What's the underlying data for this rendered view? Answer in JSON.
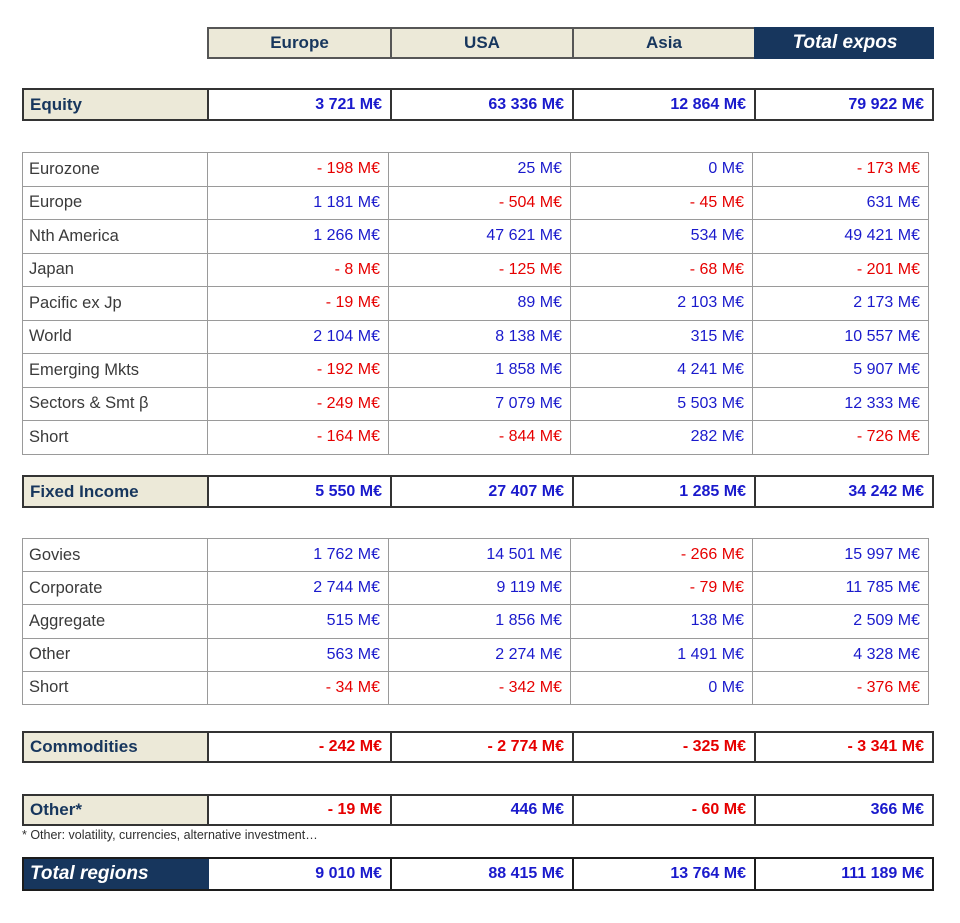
{
  "colors": {
    "positive_blue": "#1A1ACC",
    "negative_red": "#E60000",
    "navy": "#17365D",
    "beige": "#ECE9D8"
  },
  "columns": [
    "Europe",
    "USA",
    "Asia",
    "Total expos"
  ],
  "sections": {
    "equity": {
      "label": "Equity",
      "values": [
        "3 721 M€",
        "63 336 M€",
        "12 864 M€",
        "79 922 M€"
      ]
    },
    "fixed_income": {
      "label": "Fixed Income",
      "values": [
        "5 550 M€",
        "27 407 M€",
        "1 285 M€",
        "34 242 M€"
      ]
    },
    "commodities": {
      "label": "Commodities",
      "values": [
        "- 242 M€",
        "- 2 774 M€",
        "- 325 M€",
        "- 3 341 M€"
      ]
    },
    "other": {
      "label": "Other*",
      "values": [
        "- 19 M€",
        "446 M€",
        "- 60 M€",
        "366 M€"
      ]
    },
    "total": {
      "label": "Total regions",
      "values": [
        "9 010 M€",
        "88 415 M€",
        "13 764 M€",
        "111 189 M€"
      ]
    }
  },
  "equity_rows": [
    {
      "label": "Eurozone",
      "values": [
        "- 198 M€",
        "25 M€",
        "0 M€",
        "- 173 M€"
      ]
    },
    {
      "label": "Europe",
      "values": [
        "1 181 M€",
        "- 504 M€",
        "- 45 M€",
        "631 M€"
      ]
    },
    {
      "label": "Nth America",
      "values": [
        "1 266 M€",
        "47 621 M€",
        "534 M€",
        "49 421 M€"
      ]
    },
    {
      "label": "Japan",
      "values": [
        "- 8 M€",
        "- 125 M€",
        "- 68 M€",
        "- 201 M€"
      ]
    },
    {
      "label": "Pacific ex Jp",
      "values": [
        "- 19 M€",
        "89 M€",
        "2 103 M€",
        "2 173 M€"
      ]
    },
    {
      "label": "World",
      "values": [
        "2 104 M€",
        "8 138 M€",
        "315 M€",
        "10 557 M€"
      ]
    },
    {
      "label": "Emerging Mkts",
      "values": [
        "- 192 M€",
        "1 858 M€",
        "4 241 M€",
        "5 907 M€"
      ]
    },
    {
      "label": "Sectors & Smt β",
      "values": [
        "- 249 M€",
        "7 079 M€",
        "5 503 M€",
        "12 333 M€"
      ]
    },
    {
      "label": "Short",
      "values": [
        "- 164 M€",
        "- 844 M€",
        "282 M€",
        "- 726 M€"
      ]
    }
  ],
  "fixed_income_rows": [
    {
      "label": "Govies",
      "values": [
        "1 762 M€",
        "14 501 M€",
        "- 266 M€",
        "15 997 M€"
      ]
    },
    {
      "label": "Corporate",
      "values": [
        "2 744 M€",
        "9 119 M€",
        "- 79 M€",
        "11 785 M€"
      ]
    },
    {
      "label": "Aggregate",
      "values": [
        "515 M€",
        "1 856 M€",
        "138 M€",
        "2 509 M€"
      ]
    },
    {
      "label": "Other",
      "values": [
        "563 M€",
        "2 274 M€",
        "1 491 M€",
        "4 328 M€"
      ]
    },
    {
      "label": "Short",
      "values": [
        "- 34 M€",
        "- 342 M€",
        "0 M€",
        "- 376 M€"
      ]
    }
  ],
  "footnote": "* Other: volatility, currencies, alternative investment…"
}
